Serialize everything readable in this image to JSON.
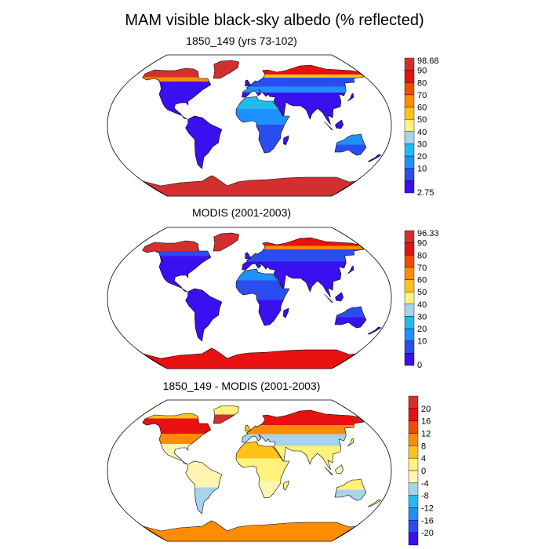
{
  "figure": {
    "title": "MAM visible black-sky albedo (% reflected)"
  },
  "colors": {
    "land_outline": "#000000",
    "ocean": "#ffffff"
  },
  "panels": [
    {
      "id": "model",
      "title": "1850_149 (yrs 73-102)",
      "colorbar": {
        "labels": [
          "98.68",
          "90",
          "80",
          "70",
          "60",
          "50",
          "40",
          "30",
          "20",
          "10",
          "2.75"
        ],
        "colors": [
          "#d32f2f",
          "#e8110f",
          "#f24a00",
          "#ff8c00",
          "#ffc21a",
          "#fff27a",
          "#a6d3ee",
          "#22bbf0",
          "#1e90ff",
          "#2a4df0",
          "#3a0ff0"
        ]
      }
    },
    {
      "id": "obs",
      "title": "MODIS (2001-2003)",
      "colorbar": {
        "labels": [
          "96.33",
          "90",
          "80",
          "70",
          "60",
          "50",
          "40",
          "30",
          "20",
          "10",
          "0"
        ],
        "colors": [
          "#d32f2f",
          "#e8110f",
          "#f24a00",
          "#ff8c00",
          "#ffc21a",
          "#fff27a",
          "#a6d3ee",
          "#22bbf0",
          "#1e90ff",
          "#2a4df0",
          "#3a0ff0"
        ]
      }
    },
    {
      "id": "diff",
      "title": "1850_149 - MODIS (2001-2003)",
      "colorbar": {
        "labels": [
          "20",
          "16",
          "12",
          "8",
          "4",
          "0",
          "-4",
          "-8",
          "-12",
          "-16",
          "-20"
        ],
        "colors": [
          "#d32f2f",
          "#e8110f",
          "#f24a00",
          "#ff8c00",
          "#ffc21a",
          "#fff27a",
          "#fdf5b0",
          "#a6d3ee",
          "#22bbf0",
          "#1e90ff",
          "#2a4df0",
          "#3a0ff0"
        ]
      }
    }
  ]
}
